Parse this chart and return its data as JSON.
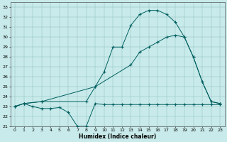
{
  "xlabel": "Humidex (Indice chaleur)",
  "bg_color": "#c8eaea",
  "line_color": "#005f5f",
  "xlim": [
    -0.5,
    23.5
  ],
  "ylim": [
    21,
    33.5
  ],
  "yticks": [
    21,
    22,
    23,
    24,
    25,
    26,
    27,
    28,
    29,
    30,
    31,
    32,
    33
  ],
  "xticks": [
    0,
    1,
    2,
    3,
    4,
    5,
    6,
    7,
    8,
    9,
    10,
    11,
    12,
    13,
    14,
    15,
    16,
    17,
    18,
    19,
    20,
    21,
    22,
    23
  ],
  "line1_x": [
    0,
    1,
    2,
    3,
    4,
    5,
    6,
    7,
    8,
    9,
    10,
    11,
    12,
    13,
    14,
    15,
    16,
    17,
    18,
    19,
    20,
    21,
    22,
    23
  ],
  "line1_y": [
    23,
    23.3,
    23.0,
    22.8,
    22.8,
    22.9,
    22.4,
    21.0,
    21.0,
    23.3,
    23.2,
    23.2,
    23.2,
    23.2,
    23.2,
    23.2,
    23.2,
    23.2,
    23.2,
    23.2,
    23.2,
    23.2,
    23.2,
    23.2
  ],
  "line2_x": [
    0,
    1,
    3,
    9,
    13,
    14,
    15,
    16,
    17,
    18,
    19,
    20,
    21,
    22,
    23
  ],
  "line2_y": [
    23,
    23.3,
    23.5,
    25.0,
    27.2,
    28.5,
    29.0,
    29.5,
    30.0,
    30.2,
    30.0,
    28.0,
    25.5,
    23.5,
    23.3
  ],
  "line3_x": [
    0,
    1,
    3,
    8,
    9,
    10,
    11,
    12,
    13,
    14,
    15,
    16,
    17,
    18,
    19,
    20,
    21,
    22,
    23
  ],
  "line3_y": [
    23,
    23.3,
    23.5,
    23.5,
    25.0,
    26.5,
    29.0,
    29.0,
    31.2,
    32.3,
    32.7,
    32.7,
    32.3,
    31.5,
    30.0,
    28.0,
    25.5,
    23.5,
    23.3
  ]
}
